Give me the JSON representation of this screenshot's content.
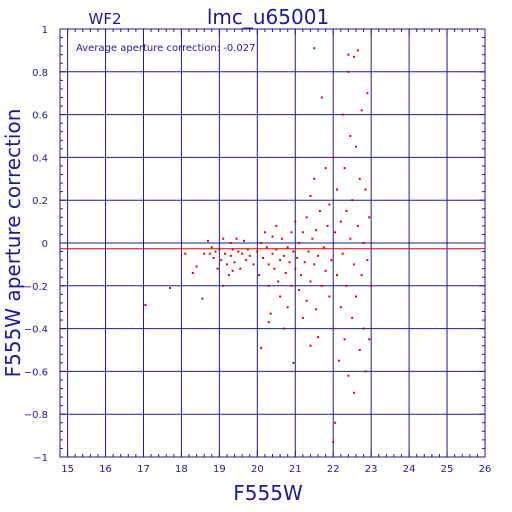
{
  "chart_data": {
    "type": "scatter",
    "panel_label": "WF2",
    "title": "lmc_u65001",
    "annotation": "Average aperture correction: -0.027",
    "xlabel": "F555W",
    "ylabel": "F555W aperture correction",
    "xlim": [
      14.8,
      26
    ],
    "ylim": [
      -1,
      1
    ],
    "xticks": [
      15,
      16,
      17,
      18,
      19,
      20,
      21,
      22,
      23,
      24,
      25,
      26
    ],
    "yticks": [
      -1,
      -0.8,
      -0.6,
      -0.4,
      -0.2,
      0,
      0.2,
      0.4,
      0.6,
      0.8,
      1
    ],
    "ytick_labels": [
      "−1",
      "−0.8",
      "−0.6",
      "−0.4",
      "−0.2",
      "0",
      "0.2",
      "0.4",
      "0.6",
      "0.8",
      "1"
    ],
    "grid": true,
    "reference_lines": [
      {
        "name": "zero",
        "y": 0,
        "color": "#1a1aa6"
      },
      {
        "name": "average",
        "y": -0.027,
        "color": "#e00000"
      }
    ],
    "colors": {
      "axes": "#1a1aa6",
      "points": "#e00000",
      "background": "#ffffff"
    },
    "series": [
      {
        "color": "#e00000",
        "points": [
          [
            17.05,
            -0.29
          ],
          [
            17.7,
            -0.21
          ],
          [
            18.1,
            -0.05
          ],
          [
            18.3,
            -0.14
          ],
          [
            18.4,
            -0.11
          ],
          [
            18.55,
            -0.26
          ],
          [
            18.6,
            -0.05
          ],
          [
            18.7,
            0.01
          ],
          [
            18.8,
            -0.02
          ],
          [
            18.85,
            -0.07
          ],
          [
            18.9,
            -0.04
          ],
          [
            18.95,
            -0.12
          ],
          [
            19.0,
            -0.03
          ],
          [
            19.05,
            -0.08
          ],
          [
            19.1,
            -0.2
          ],
          [
            19.1,
            0.02
          ],
          [
            19.15,
            -0.05
          ],
          [
            19.2,
            -0.1
          ],
          [
            19.25,
            -0.15
          ],
          [
            19.3,
            0.0
          ],
          [
            19.3,
            -0.06
          ],
          [
            19.35,
            -0.03
          ],
          [
            19.4,
            -0.09
          ],
          [
            19.45,
            0.02
          ],
          [
            19.5,
            -0.04
          ],
          [
            19.55,
            -0.12
          ],
          [
            19.6,
            -0.05
          ],
          [
            19.65,
            0.01
          ],
          [
            19.7,
            -0.08
          ],
          [
            19.75,
            -0.03
          ],
          [
            19.8,
            -0.06
          ],
          [
            19.9,
            -0.1
          ],
          [
            20.0,
            -0.04
          ],
          [
            20.05,
            -0.15
          ],
          [
            20.1,
            0.0
          ],
          [
            20.1,
            -0.49
          ],
          [
            20.15,
            -0.07
          ],
          [
            20.2,
            0.05
          ],
          [
            20.25,
            -0.02
          ],
          [
            20.3,
            -0.1
          ],
          [
            20.3,
            -0.2
          ],
          [
            20.35,
            -0.33
          ],
          [
            20.4,
            0.03
          ],
          [
            20.4,
            -0.05
          ],
          [
            20.45,
            -0.12
          ],
          [
            20.5,
            0.08
          ],
          [
            20.5,
            -0.03
          ],
          [
            20.55,
            -0.18
          ],
          [
            20.6,
            -0.08
          ],
          [
            20.6,
            -0.25
          ],
          [
            20.65,
            0.02
          ],
          [
            20.7,
            -0.06
          ],
          [
            20.75,
            -0.14
          ],
          [
            20.8,
            -0.02
          ],
          [
            20.8,
            -0.3
          ],
          [
            20.85,
            -0.09
          ],
          [
            20.9,
            0.05
          ],
          [
            20.9,
            -0.2
          ],
          [
            20.95,
            -0.04
          ],
          [
            21.0,
            -0.12
          ],
          [
            20.95,
            -0.56
          ],
          [
            21.0,
            0.1
          ],
          [
            21.05,
            -0.07
          ],
          [
            21.1,
            -0.22
          ],
          [
            21.1,
            0.0
          ],
          [
            21.15,
            -0.15
          ],
          [
            21.2,
            0.05
          ],
          [
            21.2,
            -0.35
          ],
          [
            21.25,
            -0.09
          ],
          [
            21.3,
            0.12
          ],
          [
            21.3,
            -0.27
          ],
          [
            21.35,
            -0.04
          ],
          [
            21.4,
            0.22
          ],
          [
            21.4,
            -0.18
          ],
          [
            21.45,
            0.02
          ],
          [
            21.5,
            -0.1
          ],
          [
            21.5,
            0.3
          ],
          [
            21.55,
            -0.31
          ],
          [
            21.55,
            0.06
          ],
          [
            21.6,
            -0.06
          ],
          [
            21.6,
            -0.44
          ],
          [
            21.65,
            0.15
          ],
          [
            21.7,
            -0.2
          ],
          [
            21.7,
            0.68
          ],
          [
            21.75,
            -0.02
          ],
          [
            21.8,
            0.35
          ],
          [
            21.8,
            -0.13
          ],
          [
            21.85,
            0.08
          ],
          [
            21.9,
            -0.25
          ],
          [
            21.9,
            0.18
          ],
          [
            21.95,
            -0.08
          ],
          [
            22.0,
            0.4
          ],
          [
            22.0,
            -0.4
          ],
          [
            22.05,
            0.05
          ],
          [
            22.1,
            -0.15
          ],
          [
            22.1,
            0.25
          ],
          [
            22.15,
            -0.55
          ],
          [
            22.2,
            0.1
          ],
          [
            22.2,
            -0.3
          ],
          [
            22.25,
            0.6
          ],
          [
            22.25,
            -0.05
          ],
          [
            22.3,
            0.35
          ],
          [
            22.3,
            -0.45
          ],
          [
            22.35,
            0.15
          ],
          [
            22.35,
            -0.2
          ],
          [
            22.4,
            0.8
          ],
          [
            22.4,
            -0.62
          ],
          [
            22.45,
            0.02
          ],
          [
            22.45,
            0.5
          ],
          [
            22.5,
            -0.35
          ],
          [
            22.5,
            0.2
          ],
          [
            22.55,
            -0.1
          ],
          [
            22.55,
            -0.7
          ],
          [
            22.6,
            0.45
          ],
          [
            22.6,
            -0.25
          ],
          [
            22.65,
            0.9
          ],
          [
            22.65,
            0.08
          ],
          [
            22.7,
            -0.5
          ],
          [
            22.7,
            0.3
          ],
          [
            22.75,
            -0.15
          ],
          [
            22.75,
            0.62
          ],
          [
            22.8,
            -0.4
          ],
          [
            22.8,
            0.0
          ],
          [
            22.85,
            0.25
          ],
          [
            22.85,
            -0.6
          ],
          [
            22.9,
            0.7
          ],
          [
            22.9,
            -0.08
          ],
          [
            22.95,
            0.12
          ],
          [
            22.95,
            -0.45
          ],
          [
            23.0,
            -0.2
          ],
          [
            22.05,
            -0.84
          ],
          [
            22.0,
            -0.93
          ],
          [
            21.5,
            0.91
          ],
          [
            22.4,
            0.88
          ],
          [
            22.55,
            0.87
          ],
          [
            20.3,
            -0.37
          ],
          [
            21.4,
            -0.48
          ],
          [
            19.35,
            -0.13
          ],
          [
            18.75,
            -0.05
          ],
          [
            20.7,
            -0.4
          ]
        ]
      }
    ]
  }
}
